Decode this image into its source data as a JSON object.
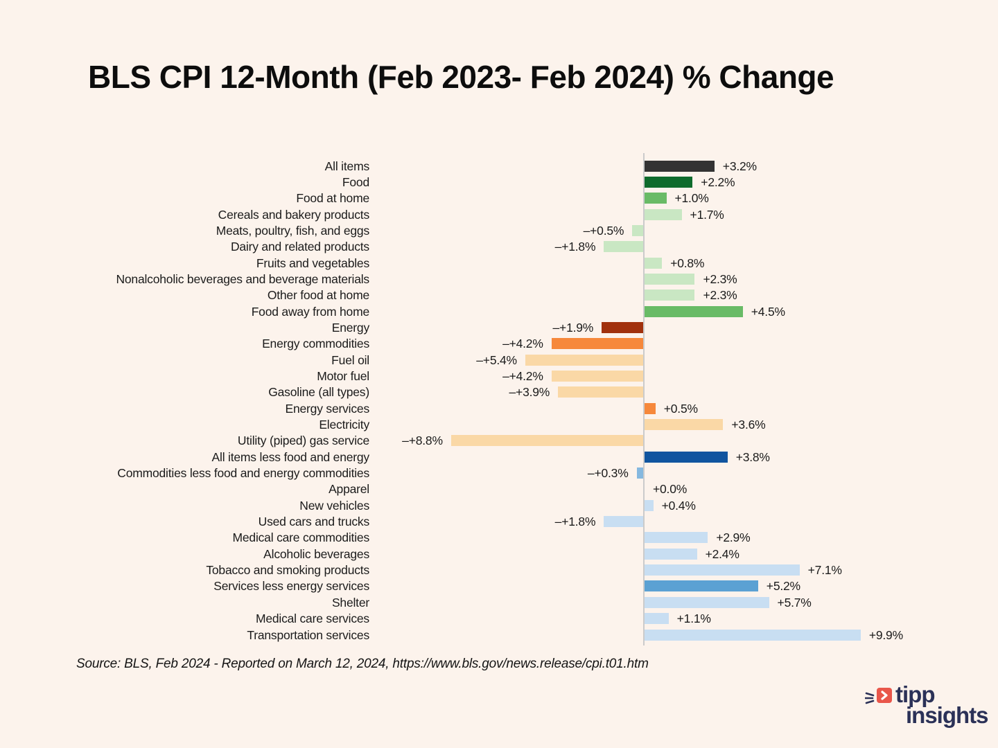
{
  "title": "BLS CPI 12-Month (Feb 2023- Feb 2024) % Change",
  "source_note": "Source:  BLS, Feb 2024 - Reported on March 12, 2024, https://www.bls.gov/news.release/cpi.t01.htm",
  "chart_data": {
    "type": "bar",
    "orientation": "horizontal",
    "unit": "percent",
    "title": "BLS CPI 12-Month (Feb 2023- Feb 2024) % Change",
    "xlabel": "",
    "ylabel": "",
    "xlim": [
      -10,
      11
    ],
    "grid": false,
    "zero_axis_line": true,
    "categories": [
      "All items",
      "Food",
      "Food at home",
      "Cereals and bakery products",
      "Meats, poultry, fish, and eggs",
      "Dairy and related products",
      "Fruits and vegetables",
      "Nonalcoholic beverages and beverage materials",
      "Other food at home",
      "Food away from home",
      "Energy",
      "Energy commodities",
      "Fuel oil",
      "Motor fuel",
      "Gasoline (all types)",
      "Energy services",
      "Electricity",
      "Utility (piped) gas service",
      "All items less food and energy",
      "Commodities less food and energy commodities",
      "Apparel",
      "New vehicles",
      "Used cars and trucks",
      "Medical care commodities",
      "Alcoholic beverages",
      "Tobacco and smoking products",
      "Services less energy services",
      "Shelter",
      "Medical care services",
      "Transportation services"
    ],
    "values": [
      3.2,
      2.2,
      1.0,
      1.7,
      -0.5,
      -1.8,
      0.8,
      2.3,
      2.3,
      4.5,
      -1.9,
      -4.2,
      -5.4,
      -4.2,
      -3.9,
      0.5,
      3.6,
      -8.8,
      3.8,
      -0.3,
      0.0,
      0.4,
      -1.8,
      2.9,
      2.4,
      7.1,
      5.2,
      5.7,
      1.1,
      9.9
    ],
    "value_labels": [
      "+3.2%",
      "+2.2%",
      "+1.0%",
      "+1.7%",
      "–+0.5%",
      "–+1.8%",
      "+0.8%",
      "+2.3%",
      "+2.3%",
      "+4.5%",
      "–+1.9%",
      "–+4.2%",
      "–+5.4%",
      "–+4.2%",
      "–+3.9%",
      "+0.5%",
      "+3.6%",
      "–+8.8%",
      "+3.8%",
      "–+0.3%",
      "+0.0%",
      "+0.4%",
      "–+1.8%",
      "+2.9%",
      "+2.4%",
      "+7.1%",
      "+5.2%",
      "+5.7%",
      "+1.1%",
      "+9.9%"
    ],
    "bar_colors": [
      "#333333",
      "#0E6B2C",
      "#69BB66",
      "#C9E7C3",
      "#C9E7C3",
      "#C9E7C3",
      "#C9E7C3",
      "#C9E7C3",
      "#C9E7C3",
      "#69BB66",
      "#A1310D",
      "#F6883B",
      "#FAD8A6",
      "#FAD8A6",
      "#FAD8A6",
      "#F6883B",
      "#FAD8A6",
      "#FAD8A6",
      "#10559F",
      "#85B8DF",
      "#C8DEF2",
      "#C8DEF2",
      "#C8DEF2",
      "#C8DEF2",
      "#C8DEF2",
      "#C8DEF2",
      "#5BA1D3",
      "#C8DEF2",
      "#C8DEF2",
      "#C8DEF2"
    ]
  },
  "colors": {
    "background": "#FCF3EC",
    "axis_line": "#CBCBCB",
    "text": "#1B1B1B",
    "logo_red": "#E9564A",
    "logo_navy": "#2B3157"
  },
  "logo": {
    "word1": "tipp",
    "word2": "insights"
  }
}
